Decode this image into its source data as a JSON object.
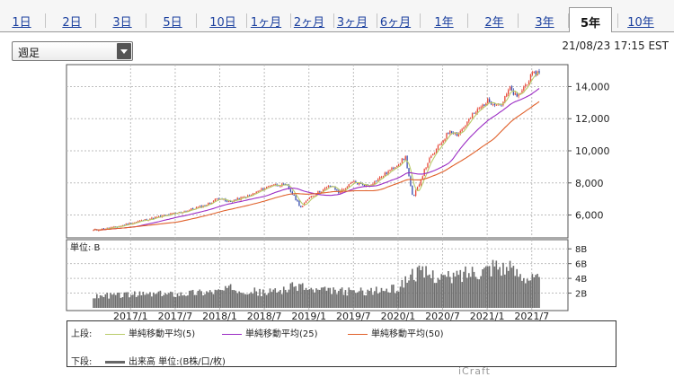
{
  "tabs": [
    {
      "label": "1日",
      "active": false
    },
    {
      "label": "2日",
      "active": false
    },
    {
      "label": "3日",
      "active": false
    },
    {
      "label": "5日",
      "active": false
    },
    {
      "label": "10日",
      "active": false
    },
    {
      "label": "1ヶ月",
      "active": false
    },
    {
      "label": "2ヶ月",
      "active": false
    },
    {
      "label": "3ヶ月",
      "active": false
    },
    {
      "label": "6ヶ月",
      "active": false
    },
    {
      "label": "1年",
      "active": false
    },
    {
      "label": "2年",
      "active": false
    },
    {
      "label": "3年",
      "active": false
    },
    {
      "label": "5年",
      "active": true
    },
    {
      "label": "10年",
      "active": false
    }
  ],
  "period_select": {
    "value": "週足"
  },
  "timestamp": "21/08/23 17:15 EST",
  "watermark": "iCraft",
  "legend": {
    "upper_label": "上段:",
    "lower_label": "下段:",
    "items": [
      {
        "label": "単純移動平均(5)",
        "color": "#b9cc6a"
      },
      {
        "label": "単純移動平均(25)",
        "color": "#9b2cc4"
      },
      {
        "label": "単純移動平均(50)",
        "color": "#e0602a"
      }
    ],
    "volume_label": "出来高 単位:(B株/口/枚)"
  },
  "colors": {
    "up": "#e84a3a",
    "down": "#3a4fb0",
    "volume": "#6e6e6e",
    "grid": "#bdbdbd"
  },
  "chart_data": [
    {
      "type": "candlestick",
      "title": "",
      "y_ticks": [
        "6,000",
        "8,000",
        "10,000",
        "12,000",
        "14,000"
      ],
      "y_tick_values": [
        6000,
        8000,
        10000,
        12000,
        14000
      ],
      "ylim": [
        4800,
        15200
      ],
      "x_start": "2016-08",
      "x_end": "2021-08",
      "x_ticks": [
        "2017/1",
        "2017/7",
        "2018/1",
        "2018/7",
        "2019/1",
        "2019/7",
        "2020/1",
        "2020/7",
        "2021/1",
        "2021/7"
      ],
      "x_tick_dates": [
        "2017-01",
        "2017-07",
        "2018-01",
        "2018-07",
        "2019-01",
        "2019-07",
        "2020-01",
        "2020-07",
        "2021-01",
        "2021-07"
      ],
      "grid": true,
      "close_anchors": [
        [
          "2016-08",
          5050
        ],
        [
          "2016-11",
          5250
        ],
        [
          "2017-02",
          5600
        ],
        [
          "2017-05",
          5900
        ],
        [
          "2017-08",
          6200
        ],
        [
          "2017-11",
          6600
        ],
        [
          "2018-01",
          7100
        ],
        [
          "2018-02",
          6800
        ],
        [
          "2018-05",
          7200
        ],
        [
          "2018-08",
          7900
        ],
        [
          "2018-10",
          7850
        ],
        [
          "2018-12",
          6450
        ],
        [
          "2019-01",
          7100
        ],
        [
          "2019-04",
          7850
        ],
        [
          "2019-05",
          7400
        ],
        [
          "2019-07",
          8050
        ],
        [
          "2019-09",
          7800
        ],
        [
          "2019-12",
          8800
        ],
        [
          "2020-02",
          9600
        ],
        [
          "2020-03",
          7000
        ],
        [
          "2020-05",
          9300
        ],
        [
          "2020-08",
          11300
        ],
        [
          "2020-09",
          11000
        ],
        [
          "2020-10",
          11600
        ],
        [
          "2020-11",
          12200
        ],
        [
          "2021-01",
          13100
        ],
        [
          "2021-03",
          12900
        ],
        [
          "2021-04",
          13900
        ],
        [
          "2021-05",
          13300
        ],
        [
          "2021-07",
          14700
        ],
        [
          "2021-08",
          14900
        ]
      ],
      "series": [
        {
          "name": "単純移動平均(5)",
          "window": 5
        },
        {
          "name": "単純移動平均(25)",
          "window": 25
        },
        {
          "name": "単純移動平均(50)",
          "window": 50
        }
      ]
    },
    {
      "type": "bar",
      "unit_label": "単位: B",
      "y_ticks": [
        "2B",
        "4B",
        "6B",
        "8B"
      ],
      "y_tick_values": [
        2,
        4,
        6,
        8
      ],
      "ylim": [
        0,
        9
      ],
      "volume_anchors": [
        [
          "2016-08",
          1.6
        ],
        [
          "2017-01",
          1.8
        ],
        [
          "2017-07",
          1.9
        ],
        [
          "2018-01",
          2.3
        ],
        [
          "2018-03",
          2.7
        ],
        [
          "2018-07",
          2.0
        ],
        [
          "2018-10",
          2.6
        ],
        [
          "2018-12",
          3.1
        ],
        [
          "2019-01",
          2.4
        ],
        [
          "2019-07",
          2.2
        ],
        [
          "2019-10",
          2.3
        ],
        [
          "2020-01",
          2.6
        ],
        [
          "2020-03",
          4.8
        ],
        [
          "2020-06",
          4.4
        ],
        [
          "2020-08",
          4.0
        ],
        [
          "2020-11",
          5.0
        ],
        [
          "2021-01",
          5.3
        ],
        [
          "2021-02",
          6.0
        ],
        [
          "2021-03",
          5.6
        ],
        [
          "2021-05",
          4.8
        ],
        [
          "2021-07",
          4.0
        ],
        [
          "2021-08",
          3.8
        ]
      ]
    }
  ]
}
